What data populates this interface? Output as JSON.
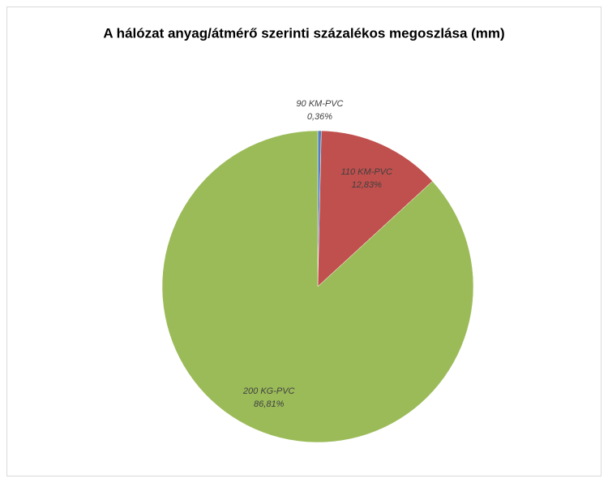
{
  "chart_data": {
    "type": "pie",
    "title": "A hálózat anyag/átmérő szerinti százalékos megoszlása (mm)",
    "categories": [
      "90 KM-PVC",
      "110 KM-PVC",
      "200 KG-PVC"
    ],
    "values": [
      0.36,
      12.83,
      86.81
    ],
    "value_labels": [
      "0,36%",
      "12,83%",
      "86,81%"
    ],
    "colors": [
      "#4f81bd",
      "#c0504d",
      "#9bbb59"
    ]
  }
}
